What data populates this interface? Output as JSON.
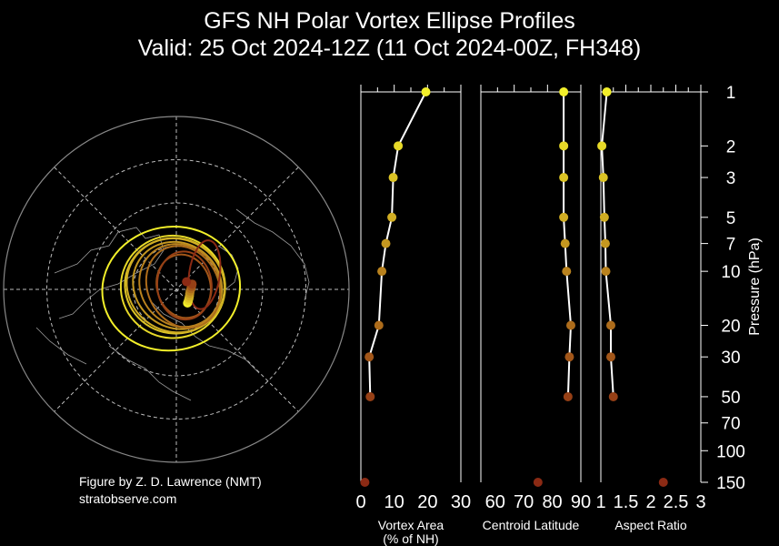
{
  "title": "GFS NH Polar Vortex Ellipse Profiles",
  "subtitle": "Valid: 25 Oct 2024-12Z  (11 Oct 2024-00Z, FH348)",
  "credit_line1": "Figure by Z. D. Lawrence (NMT)",
  "credit_line2": "stratobserve.com",
  "chart_data": [
    {
      "type": "scatter",
      "name": "vortex_area",
      "xlabel": "Vortex Area\n(% of NH)",
      "xlim": [
        0,
        30
      ],
      "xticks": [
        "0",
        "10",
        "20",
        "30"
      ],
      "pressure": [
        1,
        2,
        3,
        5,
        7,
        10,
        20,
        30,
        50,
        150
      ],
      "values": [
        19.5,
        11.2,
        9.7,
        9.3,
        7.5,
        6.3,
        5.4,
        2.5,
        2.8,
        1.2
      ]
    },
    {
      "type": "scatter",
      "name": "centroid_latitude",
      "xlabel": "Centroid Latitude",
      "xlim": [
        55,
        90
      ],
      "xticks": [
        "60",
        "70",
        "80",
        "90"
      ],
      "pressure": [
        1,
        2,
        3,
        5,
        7,
        10,
        20,
        30,
        50,
        150
      ],
      "values": [
        84,
        84,
        84,
        84,
        84.5,
        85,
        86.5,
        86,
        85.5,
        75
      ]
    },
    {
      "type": "scatter",
      "name": "aspect_ratio",
      "xlabel": "Aspect Ratio",
      "xlim": [
        1,
        3
      ],
      "xticks": [
        "1",
        "1.5",
        "2",
        "2.5",
        "3"
      ],
      "pressure": [
        1,
        2,
        3,
        5,
        7,
        10,
        20,
        30,
        50,
        150
      ],
      "values": [
        1.12,
        1.02,
        1.05,
        1.07,
        1.09,
        1.1,
        1.2,
        1.2,
        1.25,
        2.25
      ]
    }
  ],
  "pressure_axis": {
    "label": "Pressure (hPa)",
    "scale": "log",
    "ylim": [
      1,
      150
    ],
    "ticks": [
      "1",
      "2",
      "3",
      "5",
      "7",
      "10",
      "20",
      "30",
      "50",
      "70",
      "100",
      "150"
    ]
  },
  "colors": {
    "top_level": "#f2ef2a",
    "bottom_level": "#8b2a14",
    "profile_line": "#ffffff"
  },
  "polar_map": {
    "projection": "north polar stereographic",
    "latitude_circles": true,
    "meridians": true
  }
}
